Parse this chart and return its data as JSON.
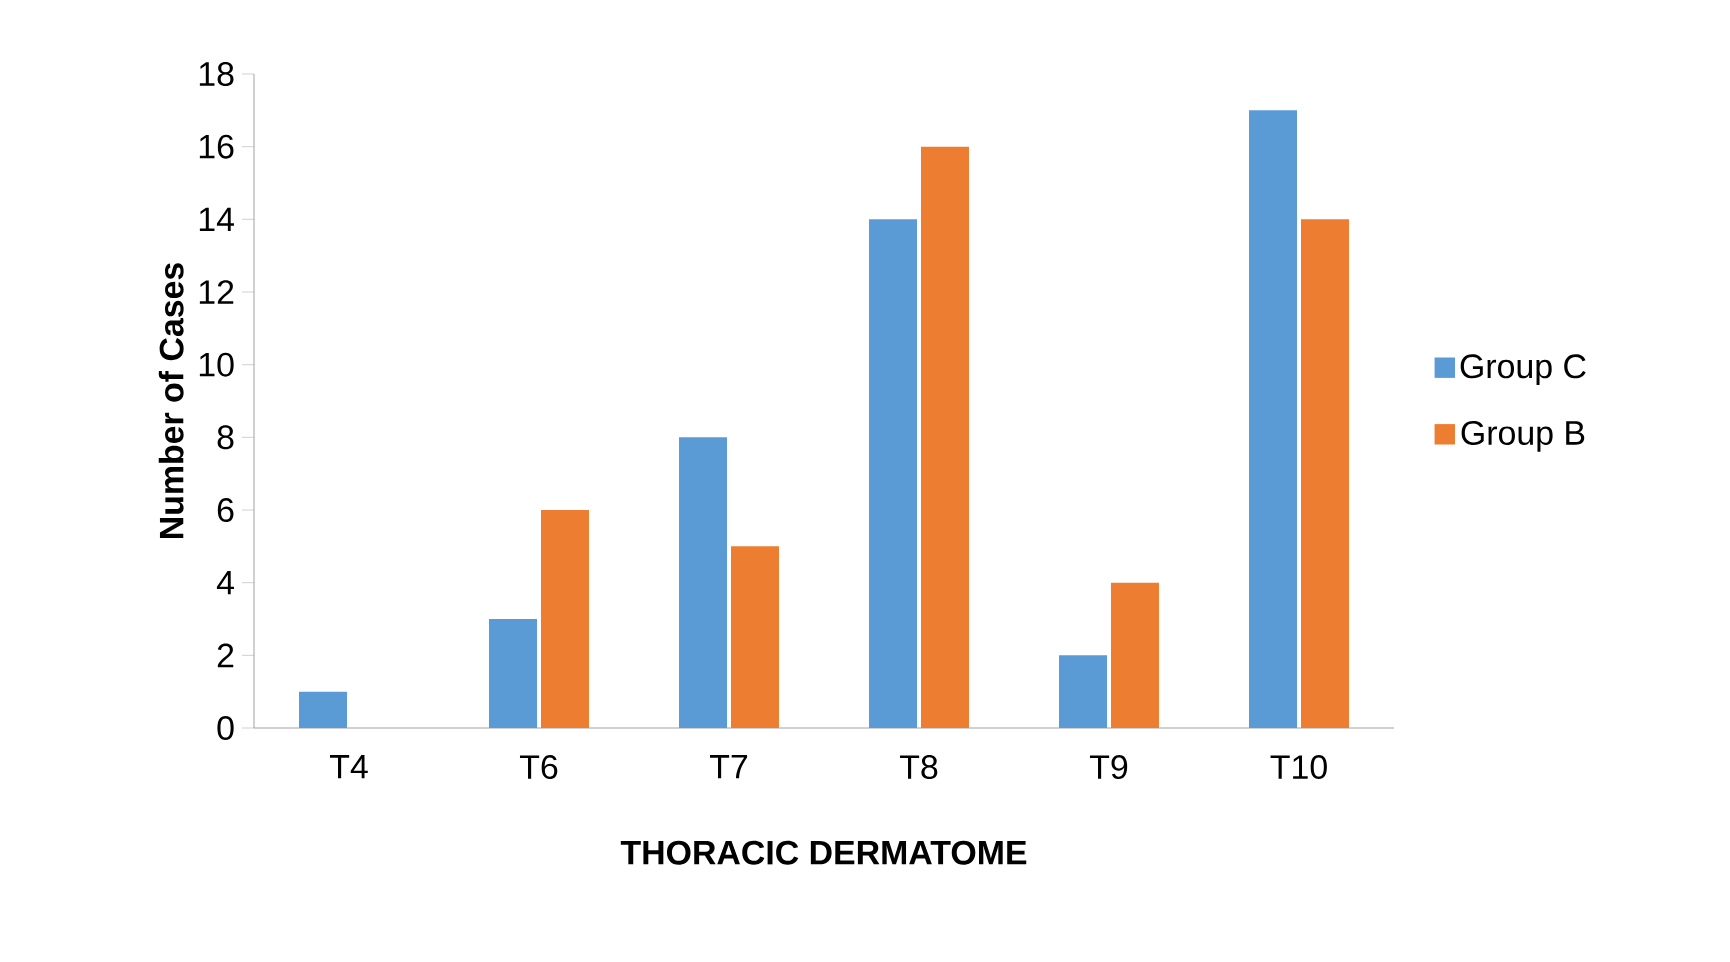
{
  "chart_data": {
    "type": "bar",
    "xlabel": "THORACIC DERMATOME",
    "ylabel": "Number of Cases",
    "categories": [
      "T4",
      "T6",
      "T7",
      "T8",
      "T9",
      "T10"
    ],
    "series": [
      {
        "name": "Group C",
        "color": "#5b9bd5",
        "values": [
          1,
          3,
          8,
          14,
          2,
          17
        ]
      },
      {
        "name": "Group B",
        "color": "#ed7d31",
        "values": [
          0,
          6,
          5,
          16,
          4,
          14
        ]
      }
    ],
    "ylim": [
      0,
      18
    ],
    "yticks": [
      0,
      2,
      4,
      6,
      8,
      10,
      12,
      14,
      16,
      18
    ],
    "grid": false,
    "legend": "right"
  }
}
